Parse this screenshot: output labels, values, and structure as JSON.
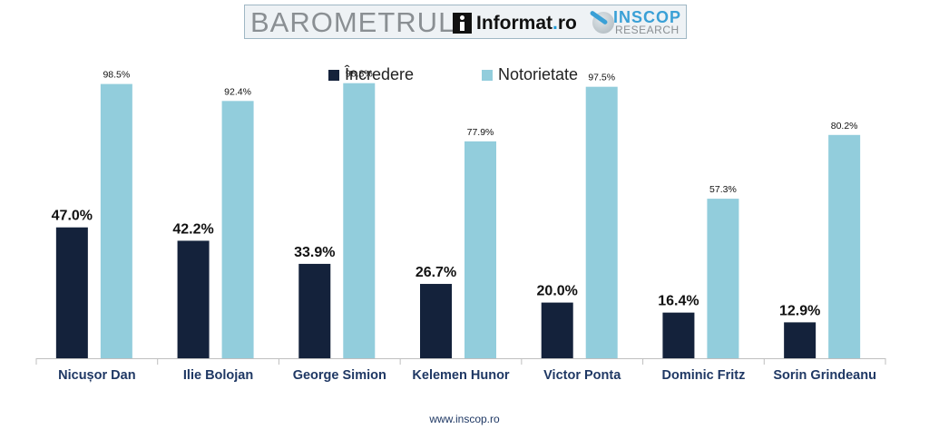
{
  "banner": {
    "barometrul": "BAROMETRUL",
    "informat": "Informat",
    "informat_dot": ".",
    "informat_tld": "ro",
    "inscop": "INSCOP",
    "research": "RESEARCH"
  },
  "footer": {
    "url": "www.inscop.ro"
  },
  "colors": {
    "incredere": "#14223b",
    "notorietate": "#92cddc",
    "category_label": "#1f3864"
  },
  "chart_data": {
    "type": "bar",
    "categories": [
      "Nicușor Dan",
      "Ilie Bolojan",
      "George Simion",
      "Kelemen Hunor",
      "Victor Ponta",
      "Dominic Fritz",
      "Sorin Grindeanu"
    ],
    "series": [
      {
        "name": "Încredere",
        "values": [
          47.0,
          42.2,
          33.9,
          26.7,
          20.0,
          16.4,
          12.9
        ],
        "labels": [
          "47.0%",
          "42.2%",
          "33.9%",
          "26.7%",
          "20.0%",
          "16.4%",
          "12.9%"
        ]
      },
      {
        "name": "Notorietate",
        "values": [
          98.5,
          92.4,
          98.8,
          77.9,
          97.5,
          57.3,
          80.2
        ],
        "labels": [
          "98.5%",
          "92.4%",
          "98.8%",
          "77.9%",
          "97.5%",
          "57.3%",
          "80.2%"
        ]
      }
    ],
    "ylim": [
      0,
      100
    ],
    "legend": "top-center",
    "grid": false
  }
}
